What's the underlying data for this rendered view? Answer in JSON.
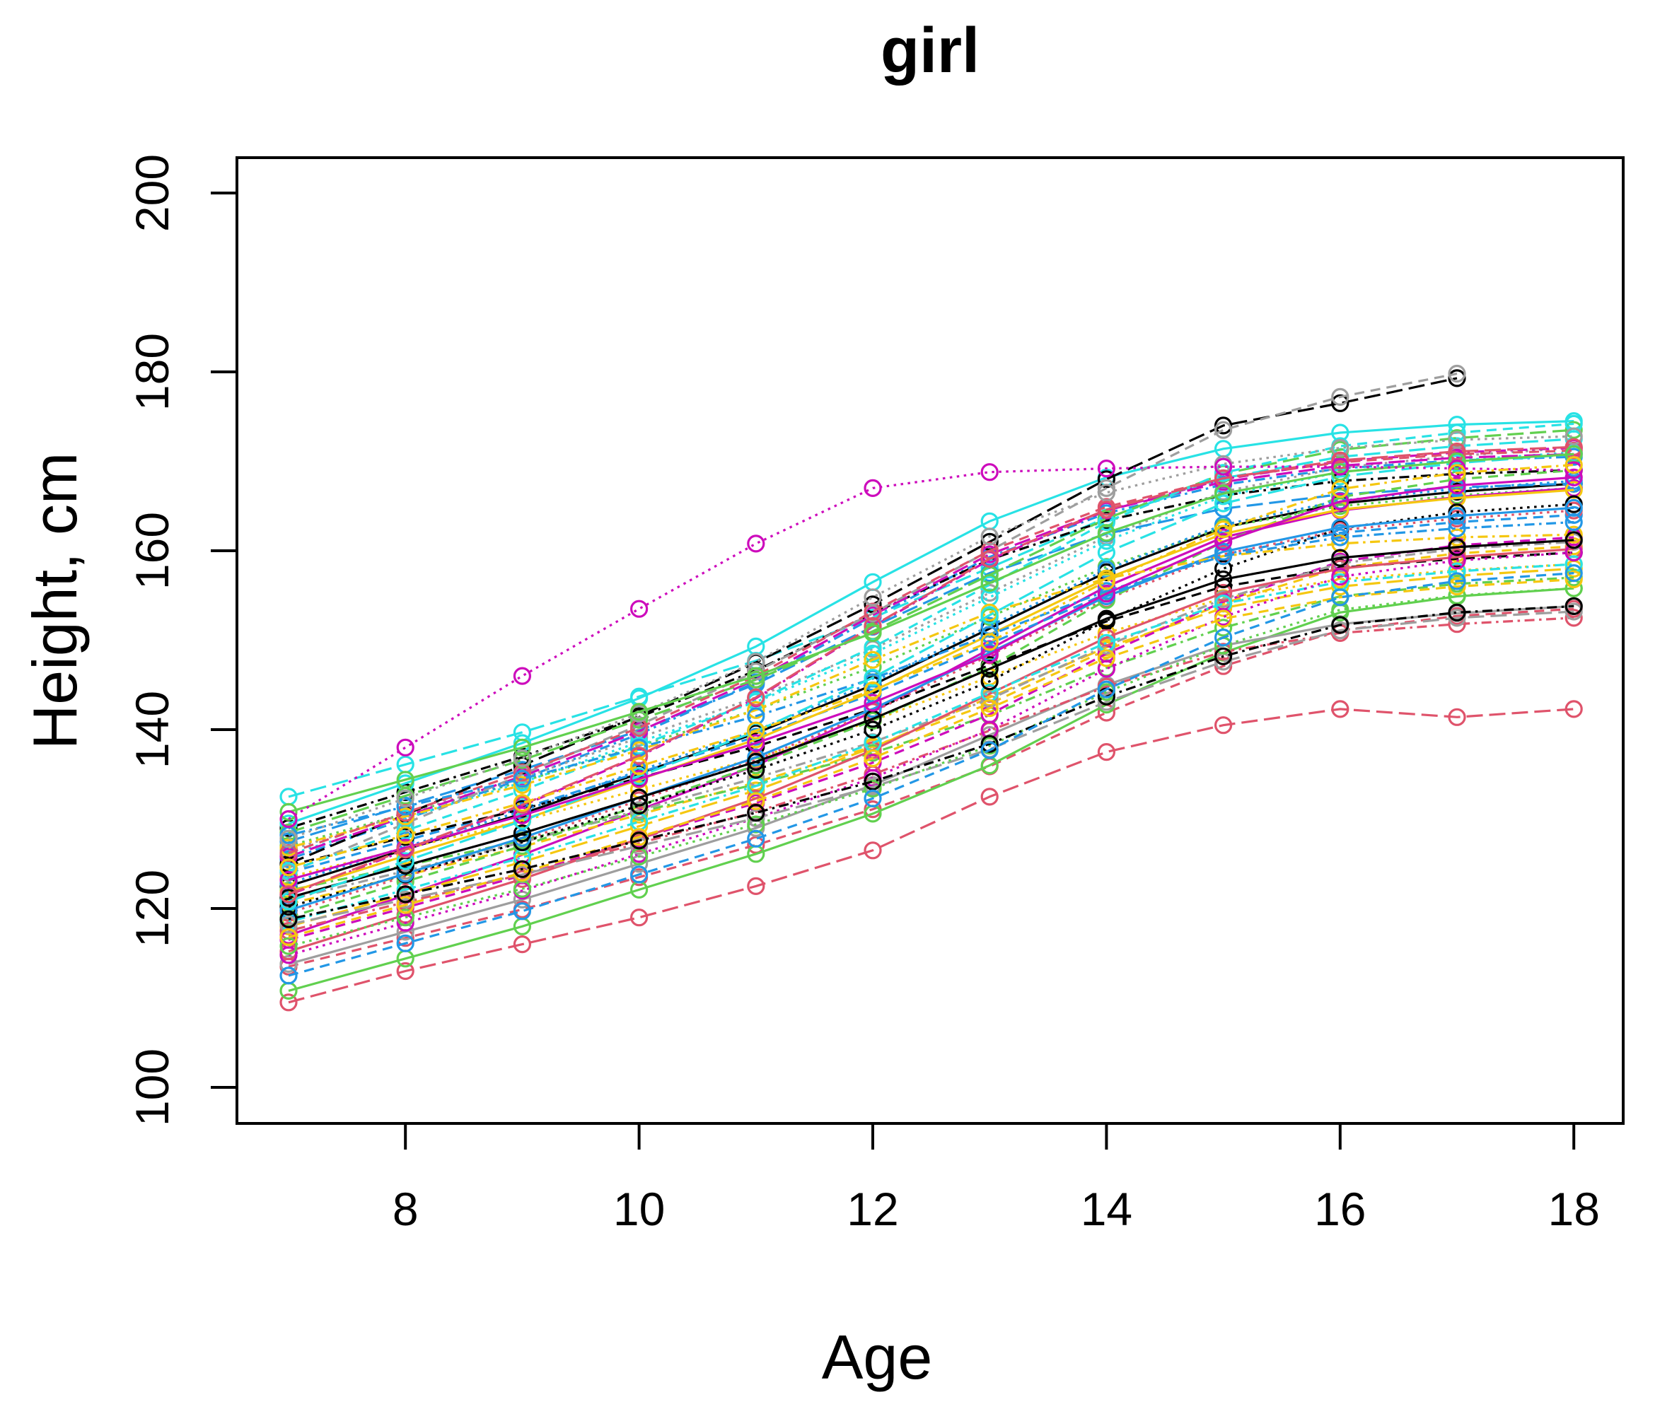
{
  "chart_data": {
    "type": "line",
    "title": "girl",
    "xlabel": "Age",
    "ylabel": "Height, cm",
    "xlim": [
      6.55,
      18.45
    ],
    "ylim": [
      96,
      204
    ],
    "xticks": [
      8,
      10,
      12,
      14,
      16,
      18
    ],
    "yticks": [
      100,
      120,
      140,
      160,
      180,
      200
    ],
    "grid": false,
    "legend": "none",
    "marker": "open-circle",
    "age_start": 7,
    "palette": [
      "#000000",
      "#DF536B",
      "#61D04F",
      "#2297E6",
      "#28E2E5",
      "#CD0BBC",
      "#F5C710",
      "#9E9E9E"
    ],
    "series": [
      {
        "color": "#000000",
        "lty": 1,
        "heights": [
          122.5,
          126.6,
          130.6,
          135.1,
          139.6,
          145,
          151.3,
          157.6,
          162.6,
          165.3,
          166.6,
          167.5
        ]
      },
      {
        "color": "#DF536B",
        "lty": 2,
        "heights": [
          113.5,
          116.7,
          119.9,
          123.5,
          127.1,
          131.1,
          135.9,
          141.9,
          147.1,
          151.1,
          152.7,
          153.5
        ]
      },
      {
        "color": "#61D04F",
        "lty": 3,
        "heights": [
          127,
          130.6,
          134.2,
          138.2,
          142.2,
          147,
          152.6,
          158.2,
          162.6,
          165,
          166.2,
          167
        ]
      },
      {
        "color": "#2297E6",
        "lty": 4,
        "heights": [
          125.5,
          130,
          134.5,
          139.5,
          145.3,
          152.5,
          159.3,
          164.2,
          167.4,
          169.2,
          170.1,
          170.5
        ]
      },
      {
        "color": "#28E2E5",
        "lty": 5,
        "heights": [
          132.5,
          136.1,
          139.7,
          143.7,
          147.7,
          152.5,
          158.1,
          163.7,
          168.1,
          170.5,
          171.7,
          172.5
        ]
      },
      {
        "color": "#CD0BBC",
        "lty": 1,
        "heights": [
          117,
          121.5,
          126,
          131,
          136,
          142,
          149,
          156,
          161.5,
          164.5,
          166,
          167
        ]
      },
      {
        "color": "#F5C710",
        "lty": 2,
        "heights": [
          120.5,
          123.7,
          126.9,
          130.5,
          134.1,
          138.1,
          142.9,
          148.9,
          154.1,
          158.1,
          159.7,
          160.5
        ]
      },
      {
        "color": "#9E9E9E",
        "lty": 3,
        "heights": [
          126.5,
          130.6,
          134.6,
          139.1,
          143.6,
          149,
          155.3,
          161.6,
          166.6,
          169.3,
          170.6,
          171.5
        ]
      },
      {
        "color": "#000000",
        "lty": 4,
        "heights": [
          129,
          133,
          137,
          141.4,
          146.6,
          153,
          159,
          163.4,
          166.2,
          167.8,
          168.6,
          169
        ]
      },
      {
        "color": "#DF536B",
        "lty": 5,
        "heights": [
          109.5,
          113,
          116,
          119,
          122.5,
          126.5,
          132.5,
          137.5,
          140.5,
          142.3,
          141.4,
          142.3
        ]
      },
      {
        "color": "#61D04F",
        "lty": 1,
        "heights": [
          110.8,
          114.4,
          118,
          122.1,
          126.1,
          130.6,
          136,
          142.8,
          148.6,
          153.1,
          154.9,
          155.8
        ]
      },
      {
        "color": "#2297E6",
        "lty": 2,
        "heights": [
          124,
          127.6,
          131.2,
          135.2,
          139.2,
          144,
          149.6,
          155.2,
          159.6,
          162,
          163.2,
          164
        ]
      },
      {
        "color": "#28E2E5",
        "lty": 3,
        "heights": [
          126,
          130.1,
          134.1,
          138.6,
          143.1,
          148.5,
          154.8,
          161.1,
          166.1,
          168.8,
          170.1,
          171
        ]
      },
      {
        "color": "#CD0BBC",
        "lty": 4,
        "heights": [
          121.5,
          126.5,
          131.5,
          137,
          143.5,
          151.5,
          159,
          164.5,
          168,
          170,
          171,
          171.5
        ]
      },
      {
        "color": "#F5C710",
        "lty": 5,
        "heights": [
          118,
          121.6,
          125.2,
          129.2,
          133.2,
          138,
          143.6,
          149.2,
          153.6,
          156,
          157.2,
          158
        ]
      },
      {
        "color": "#9E9E9E",
        "lty": 1,
        "heights": [
          113.8,
          117.4,
          121,
          125,
          129,
          133.8,
          139.4,
          145,
          149.4,
          151.8,
          153,
          153.8
        ]
      },
      {
        "color": "#000000",
        "lty": 2,
        "heights": [
          124.8,
          128,
          131.1,
          134.6,
          138.1,
          142.3,
          147.2,
          152.1,
          156,
          158.1,
          159.1,
          159.8
        ]
      },
      {
        "color": "#DF536B",
        "lty": 3,
        "heights": [
          119.5,
          123.6,
          127.6,
          132.1,
          136.6,
          142,
          148.3,
          154.6,
          159.6,
          162.3,
          163.6,
          164.5
        ]
      },
      {
        "color": "#61D04F",
        "lty": 4,
        "heights": [
          122,
          124.8,
          127.6,
          130.8,
          133.9,
          137.4,
          141.6,
          146.9,
          151.4,
          154.9,
          156.3,
          157
        ]
      },
      {
        "color": "#2297E6",
        "lty": 5,
        "heights": [
          127.5,
          131.5,
          135.5,
          139.9,
          145.1,
          151.5,
          157.5,
          161.9,
          164.7,
          166.3,
          167.1,
          167.5
        ]
      },
      {
        "color": "#28E2E5",
        "lty": 1,
        "heights": [
          129.5,
          134,
          138.5,
          143.5,
          149.3,
          156.5,
          163.3,
          168.2,
          171.4,
          173.2,
          174.1,
          174.5
        ]
      },
      {
        "color": "#CD0BBC",
        "lty": 2,
        "heights": [
          116.5,
          120.1,
          123.7,
          127.8,
          131.8,
          136.3,
          141.7,
          148.5,
          154.3,
          158.8,
          160.6,
          161.5
        ]
      },
      {
        "color": "#F5C710",
        "lty": 3,
        "heights": [
          123.5,
          126.7,
          129.8,
          133.3,
          136.8,
          141,
          145.9,
          150.8,
          154.7,
          156.8,
          157.8,
          158.5
        ]
      },
      {
        "color": "#9E9E9E",
        "lty": 4,
        "heights": [
          121,
          124.2,
          127.4,
          131,
          134.6,
          138.6,
          143.4,
          149.4,
          154.6,
          158.6,
          160.2,
          161
        ]
      },
      {
        "color": "#000000",
        "lty": 5,
        "ages": [
          7,
          8,
          9,
          10,
          11,
          12,
          13,
          14,
          15,
          16,
          17
        ],
        "heights": [
          125,
          130.5,
          136,
          141.5,
          147.5,
          154,
          161,
          168,
          174,
          176.5,
          179.3
        ]
      },
      {
        "color": "#DF536B",
        "lty": 1,
        "heights": [
          115.2,
          119.3,
          123.3,
          127.8,
          132.3,
          137.7,
          144,
          150.3,
          155.3,
          158,
          159.3,
          160.2
        ]
      },
      {
        "color": "#61D04F",
        "lty": 2,
        "heights": [
          119,
          123,
          127,
          131.5,
          136,
          141,
          147,
          154.5,
          161,
          166,
          168,
          169
        ]
      },
      {
        "color": "#2297E6",
        "lty": 3,
        "heights": [
          122.8,
          126.9,
          130.9,
          135.4,
          139.9,
          145.3,
          151.6,
          157.9,
          162.9,
          165.6,
          166.9,
          167.8
        ]
      },
      {
        "color": "#28E2E5",
        "lty": 4,
        "heights": [
          118.5,
          122.1,
          125.7,
          129.7,
          133.7,
          138.5,
          144.1,
          149.7,
          154.1,
          156.5,
          157.7,
          158.5
        ]
      },
      {
        "color": "#CD0BBC",
        "lty": 5,
        "heights": [
          125.8,
          130.3,
          134.8,
          139.8,
          145.6,
          152.8,
          159.6,
          164.5,
          167.7,
          169.5,
          170.4,
          170.8
        ]
      },
      {
        "color": "#F5C710",
        "lty": 1,
        "heights": [
          121.8,
          125.9,
          129.9,
          134.4,
          138.9,
          144.3,
          150.6,
          156.9,
          161.9,
          164.6,
          165.9,
          166.8
        ]
      },
      {
        "color": "#9E9E9E",
        "lty": 2,
        "ages": [
          7,
          8,
          9,
          10,
          11,
          12,
          13,
          14,
          15,
          16,
          17
        ],
        "heights": [
          124,
          129.5,
          135,
          140.5,
          146.5,
          153,
          160,
          167,
          173.5,
          177.2,
          179.8
        ]
      },
      {
        "color": "#000000",
        "lty": 3,
        "heights": [
          120.2,
          123.8,
          127.4,
          131.5,
          135.5,
          140,
          145.4,
          152.2,
          158,
          162.5,
          164.3,
          165.2
        ]
      },
      {
        "color": "#DF536B",
        "lty": 4,
        "heights": [
          117.5,
          120.7,
          123.8,
          127.3,
          130.8,
          135,
          139.9,
          144.8,
          148.7,
          150.8,
          151.8,
          152.5
        ]
      },
      {
        "color": "#61D04F",
        "lty": 5,
        "heights": [
          128.5,
          132.6,
          136.6,
          141.1,
          145.6,
          151,
          157.3,
          163.6,
          168.6,
          171.3,
          172.6,
          173.5
        ]
      },
      {
        "color": "#2297E6",
        "lty": 1,
        "heights": [
          119.8,
          123.9,
          127.9,
          132.4,
          136.9,
          142.3,
          148.6,
          154.9,
          159.9,
          162.6,
          163.9,
          164.8
        ]
      },
      {
        "color": "#28E2E5",
        "lty": 2,
        "heights": [
          124.2,
          128.7,
          133.2,
          138.2,
          143.2,
          149.2,
          156.2,
          163.2,
          168.7,
          171.7,
          173.2,
          174.2
        ]
      },
      {
        "color": "#CD0BBC",
        "lty": 3,
        "heights": [
          114.8,
          118.4,
          122,
          126.1,
          130.1,
          134.6,
          140,
          146.8,
          152.6,
          157.1,
          158.9,
          159.8
        ]
      },
      {
        "color": "#F5C710",
        "lty": 4,
        "heights": [
          126.8,
          130.3,
          133.8,
          137.7,
          142.2,
          147.8,
          153.1,
          156.9,
          159.4,
          160.8,
          161.5,
          161.8
        ]
      },
      {
        "color": "#9E9E9E",
        "lty": 5,
        "heights": [
          118.2,
          121,
          123.8,
          127,
          130.1,
          133.6,
          137.8,
          143.1,
          147.6,
          151.1,
          152.5,
          153.2
        ]
      },
      {
        "color": "#000000",
        "lty": 1,
        "heights": [
          121.2,
          124.8,
          128.4,
          132.4,
          136.4,
          141.2,
          146.8,
          152.4,
          156.8,
          159.2,
          160.4,
          161.2
        ]
      },
      {
        "color": "#DF536B",
        "lty": 2,
        "heights": [
          126.2,
          130.7,
          135.2,
          140.2,
          146,
          153.2,
          160,
          164.9,
          168.1,
          169.9,
          170.8,
          171.2
        ]
      },
      {
        "color": "#61D04F",
        "lty": 3,
        "heights": [
          115.8,
          119,
          122.2,
          125.8,
          129.4,
          133.4,
          138.2,
          144.2,
          149.4,
          153.4,
          155,
          155.8
        ]
      },
      {
        "color": "#2297E6",
        "lty": 4,
        "heights": [
          128.2,
          131.4,
          134.5,
          138,
          141.5,
          145.7,
          150.6,
          155.5,
          159.4,
          161.5,
          162.5,
          163.2
        ]
      },
      {
        "color": "#28E2E5",
        "lty": 5,
        "heights": [
          120.8,
          125.3,
          129.8,
          134.8,
          139.8,
          145.8,
          152.8,
          159.8,
          165.3,
          168.3,
          169.8,
          170.8
        ]
      },
      {
        "color": "#CD0BBC",
        "lty": 1,
        "heights": [
          123.2,
          126.8,
          130.4,
          134.5,
          138.5,
          143,
          148.4,
          155.2,
          161,
          165.5,
          167.3,
          168.2
        ]
      },
      {
        "color": "#F5C710",
        "lty": 2,
        "heights": [
          116.8,
          120.4,
          124,
          128,
          132,
          136.8,
          142.4,
          148,
          152.4,
          154.8,
          156,
          156.8
        ]
      },
      {
        "color": "#9E9E9E",
        "lty": 3,
        "heights": [
          127.8,
          132.3,
          136.8,
          141.8,
          147.6,
          154.8,
          161.6,
          166.5,
          169.7,
          171.5,
          172.4,
          172.8
        ]
      },
      {
        "color": "#000000",
        "lty": 4,
        "heights": [
          118.8,
          121.6,
          124.4,
          127.6,
          130.7,
          134.2,
          138.4,
          143.7,
          148.2,
          151.7,
          153.1,
          153.8
        ]
      },
      {
        "color": "#DF536B",
        "lty": 5,
        "heights": [
          121.6,
          126.6,
          131.6,
          137.1,
          143.6,
          151.6,
          159.1,
          164.6,
          168.1,
          170.1,
          171.1,
          171.6
        ]
      },
      {
        "color": "#61D04F",
        "lty": 1,
        "heights": [
          130.8,
          134.4,
          138,
          142,
          146,
          150.8,
          156.4,
          162,
          166.4,
          168.8,
          170,
          170.8
        ]
      },
      {
        "color": "#2297E6",
        "lty": 2,
        "heights": [
          112.5,
          116.1,
          119.7,
          123.8,
          127.8,
          132.3,
          137.7,
          144.5,
          150.3,
          154.8,
          156.6,
          157.5
        ]
      },
      {
        "color": "#CD0BBC",
        "lty": 3,
        "heights": [
          130,
          138,
          146,
          153.5,
          160.8,
          167,
          168.8,
          169.2,
          169.4,
          169.4,
          169.2,
          169
        ]
      },
      {
        "color": "#F5C710",
        "lty": 4,
        "heights": [
          124.6,
          128.2,
          131.8,
          135.9,
          139.9,
          144.4,
          149.8,
          156.6,
          162.4,
          166.9,
          168.7,
          169.6
        ]
      }
    ]
  }
}
